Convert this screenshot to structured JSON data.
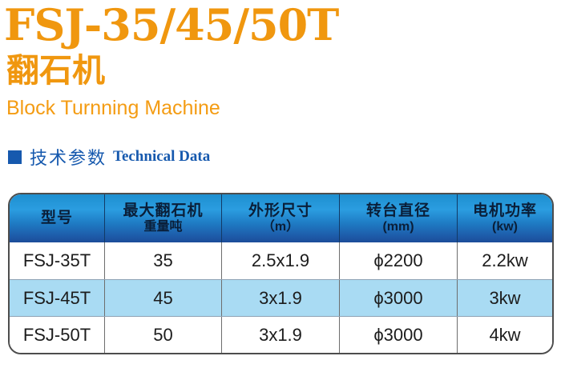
{
  "header": {
    "model_title": "FSJ-35/45/50T",
    "product_name_cn": "翻石机",
    "product_name_en": "Block Turnning Machine"
  },
  "section": {
    "heading_cn": "技术参数",
    "heading_en": "Technical Data"
  },
  "colors": {
    "accent_orange": "#f0970f",
    "accent_blue": "#1659ae",
    "table_header_blue_top": "#2b9de0",
    "table_header_blue_bottom": "#1c4c99",
    "row_highlight_blue": "#a9dbf3"
  },
  "table": {
    "columns": [
      {
        "line1": "型号",
        "line2": ""
      },
      {
        "line1": "最大翻石机",
        "line2": "重量吨"
      },
      {
        "line1": "外形尺寸",
        "line2": "（m）"
      },
      {
        "line1": "转台直径",
        "line2": "(mm)"
      },
      {
        "line1": "电机功率",
        "line2": "(kw)"
      }
    ],
    "rows": [
      [
        "FSJ-35T",
        "35",
        "2.5x1.9",
        "ϕ2200",
        "2.2kw"
      ],
      [
        "FSJ-45T",
        "45",
        "3x1.9",
        "ϕ3000",
        "3kw"
      ],
      [
        "FSJ-50T",
        "50",
        "3x1.9",
        "ϕ3000",
        "4kw"
      ]
    ]
  }
}
